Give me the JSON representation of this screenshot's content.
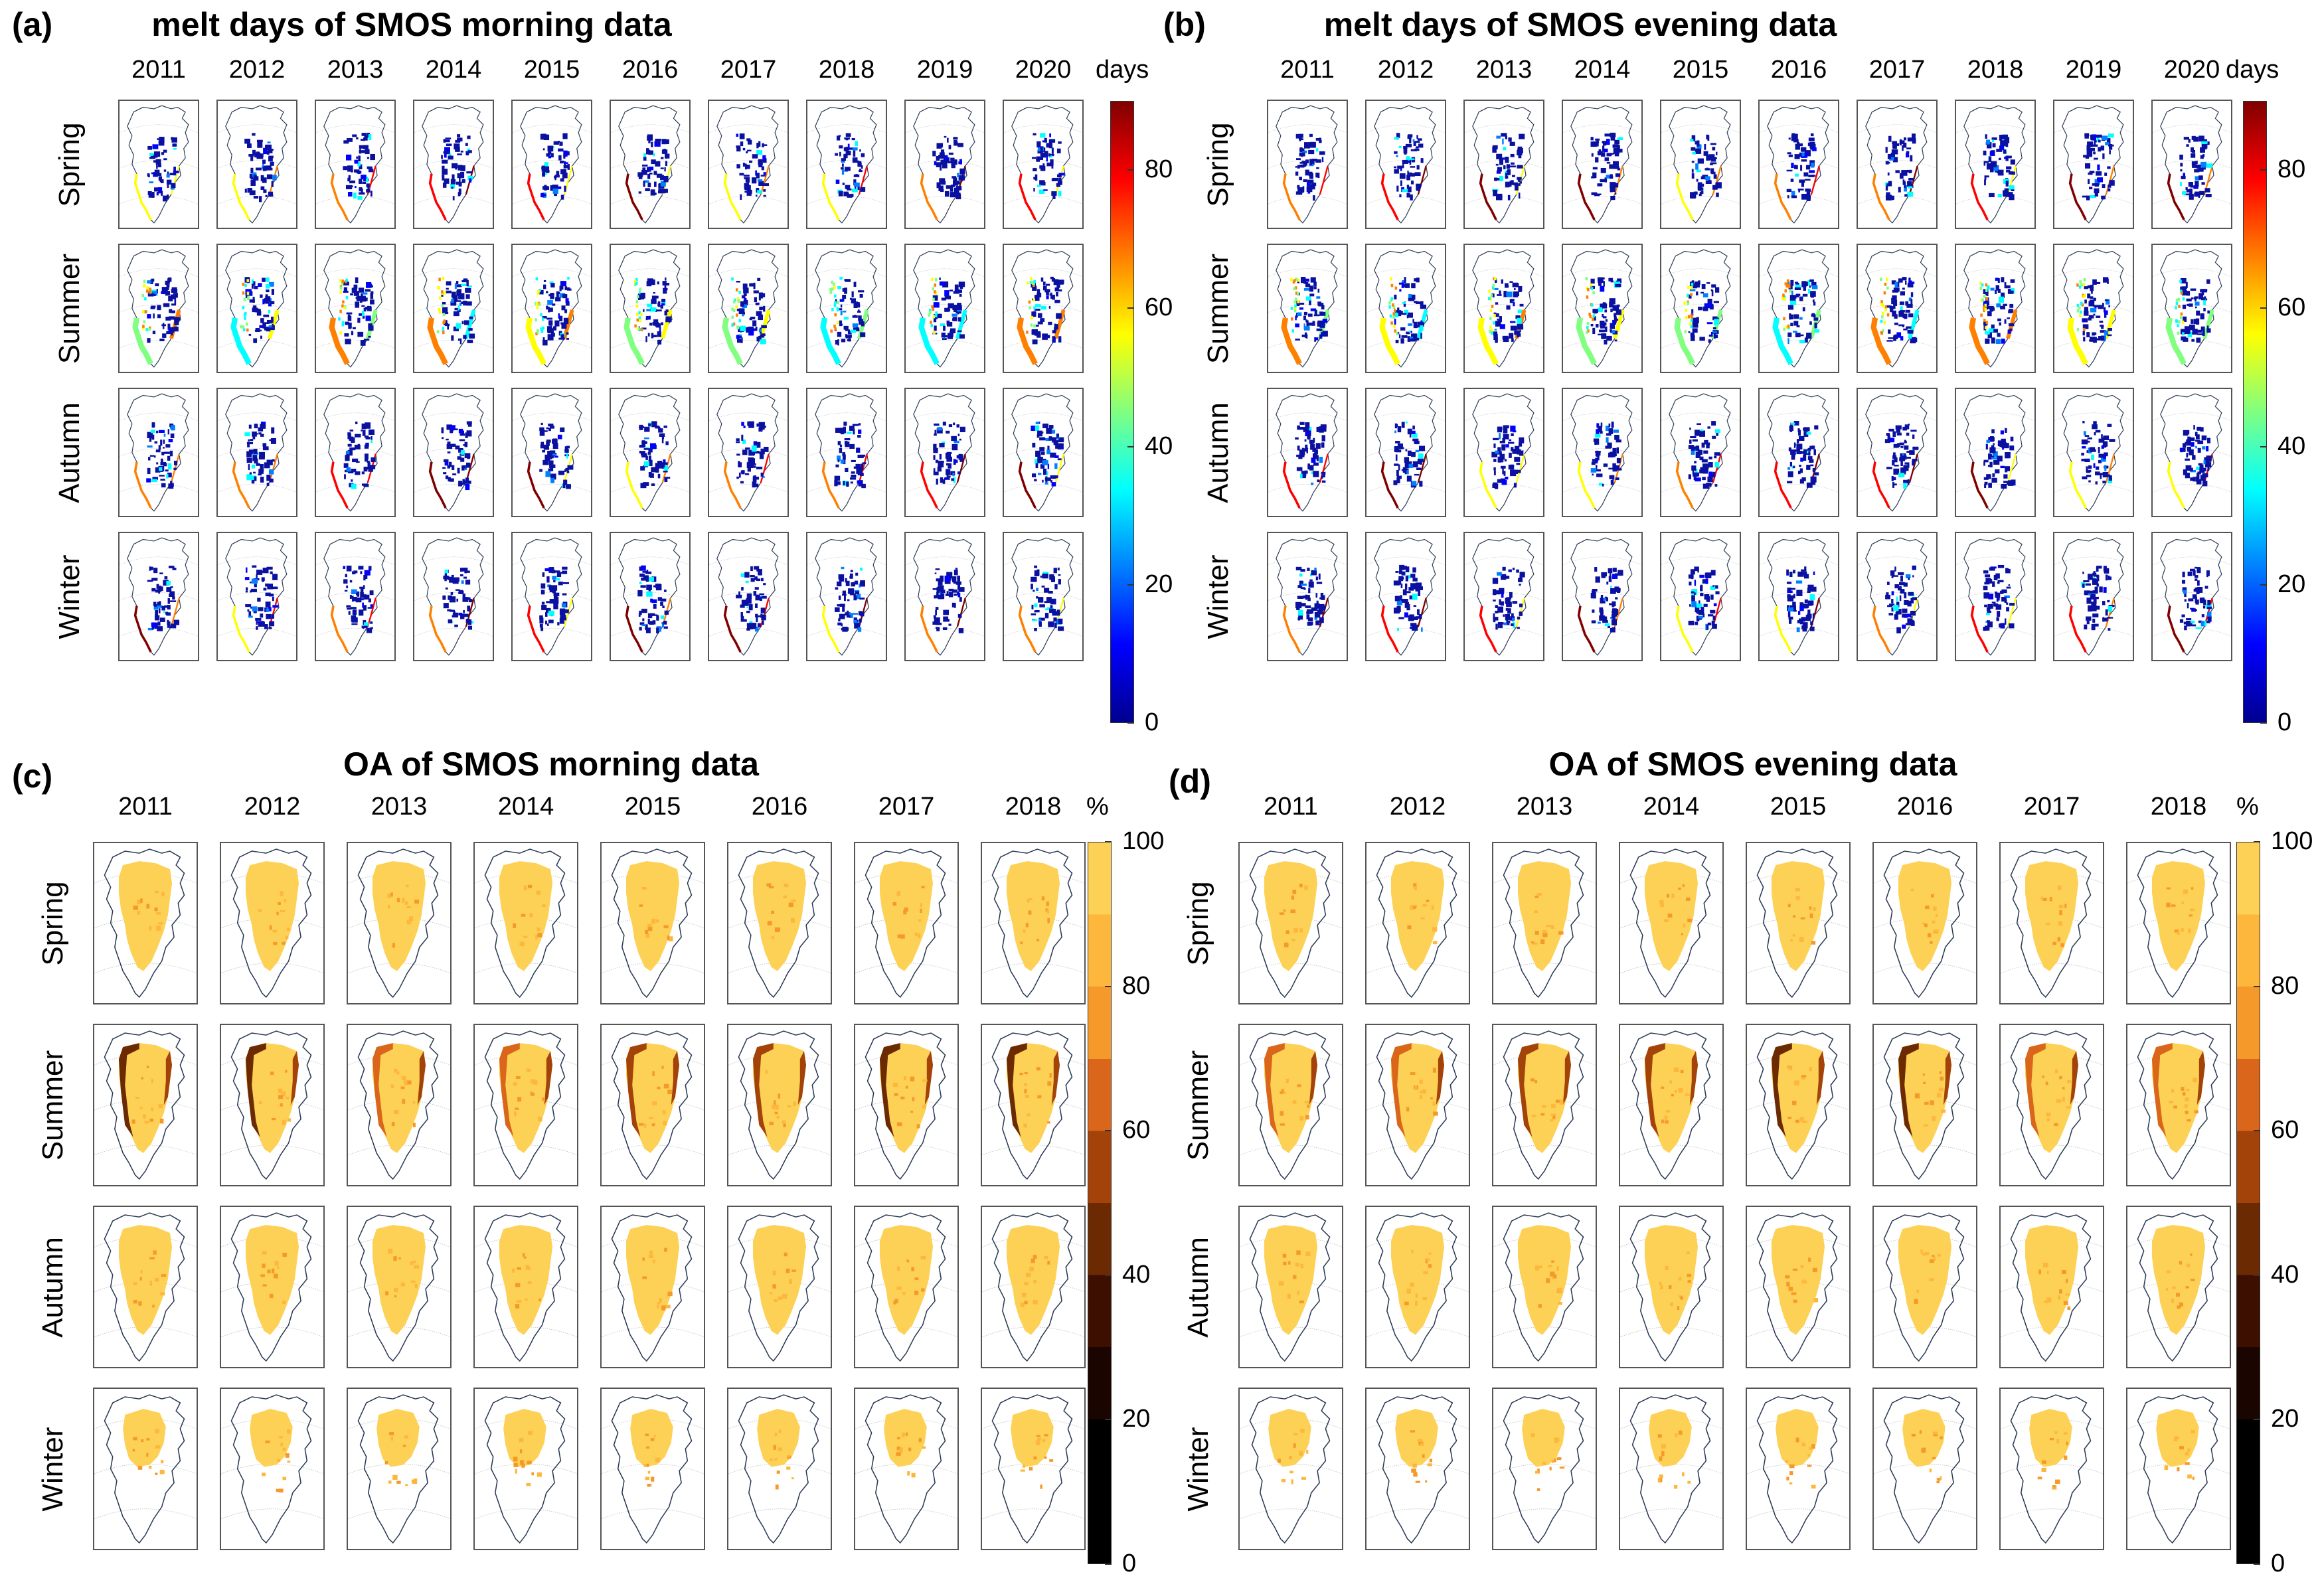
{
  "chart_data": [
    {
      "id": "a",
      "panel_label": "(a)",
      "title": "melt days of SMOS morning data",
      "type": "heatmap",
      "years": [
        "2011",
        "2012",
        "2013",
        "2014",
        "2015",
        "2016",
        "2017",
        "2018",
        "2019",
        "2020"
      ],
      "seasons": [
        "Spring",
        "Summer",
        "Autumn",
        "Winter"
      ],
      "colorbar": {
        "unit": "days",
        "min": 0,
        "max": 90,
        "ticks": [
          "0",
          "20",
          "40",
          "60",
          "80"
        ],
        "colormap": "jet"
      }
    },
    {
      "id": "b",
      "panel_label": "(b)",
      "title": "melt days of SMOS evening data",
      "type": "heatmap",
      "years": [
        "2011",
        "2012",
        "2013",
        "2014",
        "2015",
        "2016",
        "2017",
        "2018",
        "2019",
        "2020"
      ],
      "seasons": [
        "Spring",
        "Summer",
        "Autumn",
        "Winter"
      ],
      "colorbar": {
        "unit": "days",
        "min": 0,
        "max": 90,
        "ticks": [
          "0",
          "20",
          "40",
          "60",
          "80"
        ],
        "colormap": "jet"
      }
    },
    {
      "id": "c",
      "panel_label": "(c)",
      "title": "OA of SMOS morning data",
      "type": "heatmap",
      "years": [
        "2011",
        "2012",
        "2013",
        "2014",
        "2015",
        "2016",
        "2017",
        "2018"
      ],
      "seasons": [
        "Spring",
        "Summer",
        "Autumn",
        "Winter"
      ],
      "colorbar": {
        "unit": "%",
        "min": 0,
        "max": 100,
        "ticks": [
          "0",
          "20",
          "40",
          "60",
          "80",
          "100"
        ],
        "colormap": "hot-discrete"
      }
    },
    {
      "id": "d",
      "panel_label": "(d)",
      "title": "OA of SMOS evening data",
      "type": "heatmap",
      "years": [
        "2011",
        "2012",
        "2013",
        "2014",
        "2015",
        "2016",
        "2017",
        "2018"
      ],
      "seasons": [
        "Spring",
        "Summer",
        "Autumn",
        "Winter"
      ],
      "colorbar": {
        "unit": "%",
        "min": 0,
        "max": 100,
        "ticks": [
          "0",
          "20",
          "40",
          "60",
          "80",
          "100"
        ],
        "colormap": "hot-discrete"
      }
    }
  ],
  "colors": {
    "jet": [
      "#00008f",
      "#0000ff",
      "#0080ff",
      "#00ffff",
      "#80ff80",
      "#ffff00",
      "#ff8000",
      "#ff0000",
      "#800000"
    ],
    "oa": [
      "#000000",
      "#000000",
      "#1a0500",
      "#3d0f00",
      "#6b2a02",
      "#a3430a",
      "#d9661a",
      "#f59a2a",
      "#fdb73c",
      "#fcd155"
    ],
    "coast": "#2a3a55",
    "melt_fill": "#0a10a0"
  }
}
